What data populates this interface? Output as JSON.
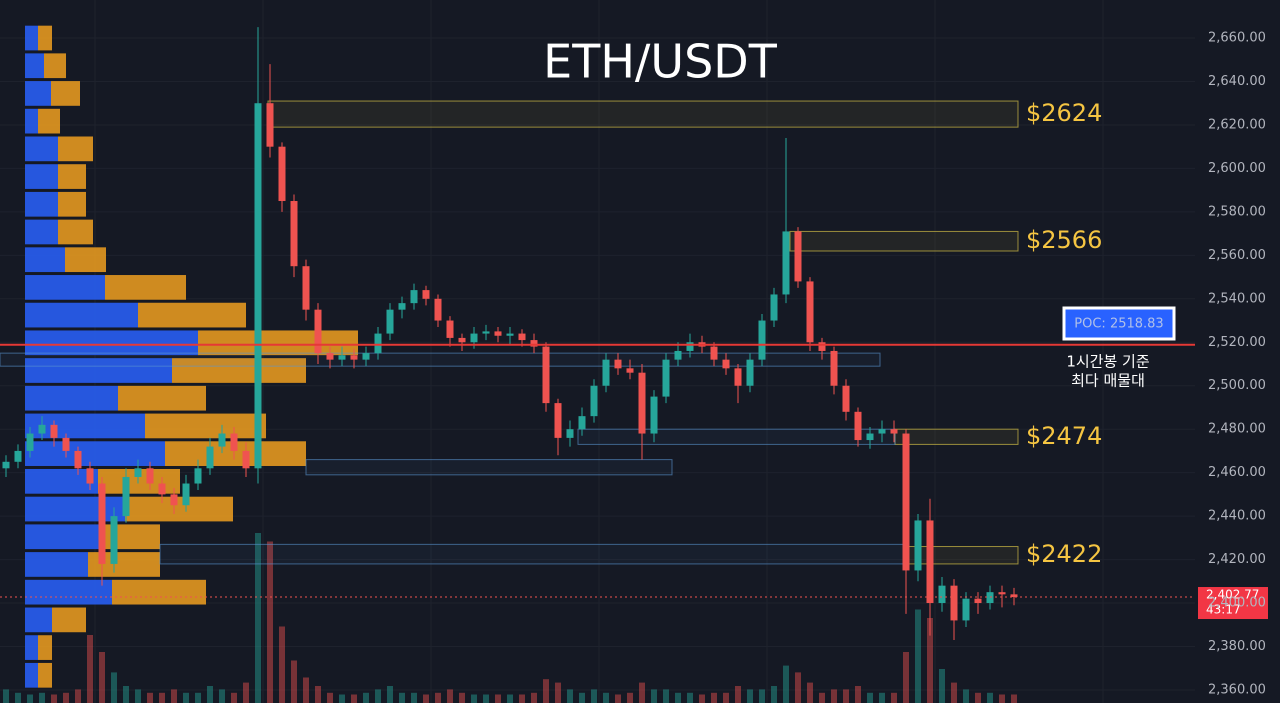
{
  "chart_data": {
    "type": "candlestick",
    "title": "ETH/USDT",
    "ylim": [
      2354,
      2677.5
    ],
    "yticks": [
      {
        "value": 2360,
        "label": "2,360.00"
      },
      {
        "value": 2380,
        "label": "2,380.00"
      },
      {
        "value": 2400,
        "label": "2,400.00"
      },
      {
        "value": 2420,
        "label": "2,420.00"
      },
      {
        "value": 2440,
        "label": "2,440.00"
      },
      {
        "value": 2460,
        "label": "2,460.00"
      },
      {
        "value": 2480,
        "label": "2,480.00"
      },
      {
        "value": 2500,
        "label": "2,500.00"
      },
      {
        "value": 2520,
        "label": "2,520.00"
      },
      {
        "value": 2540,
        "label": "2,540.00"
      },
      {
        "value": 2560,
        "label": "2,560.00"
      },
      {
        "value": 2580,
        "label": "2,580.00"
      },
      {
        "value": 2600,
        "label": "2,600.00"
      },
      {
        "value": 2620,
        "label": "2,620.00"
      },
      {
        "value": 2640,
        "label": "2,640.00"
      },
      {
        "value": 2660,
        "label": "2,660.00"
      }
    ],
    "grid": true,
    "up_color": "#26a69a",
    "down_color": "#ef5350",
    "open": [
      2462,
      2465,
      2470,
      2478,
      2482,
      2476,
      2470,
      2462,
      2455,
      2418,
      2440,
      2458,
      2462,
      2455,
      2450,
      2445,
      2455,
      2462,
      2472,
      2478,
      2470,
      2462,
      2630,
      2610,
      2585,
      2555,
      2535,
      2515,
      2512,
      2514,
      2512,
      2515,
      2524,
      2535,
      2538,
      2544,
      2540,
      2530,
      2522,
      2520,
      2524,
      2525,
      2523,
      2524,
      2521,
      2518,
      2492,
      2476,
      2480,
      2486,
      2500,
      2512,
      2508,
      2506,
      2478,
      2495,
      2512,
      2516,
      2520,
      2518,
      2512,
      2508,
      2500,
      2512,
      2530,
      2542,
      2571,
      2548,
      2520,
      2516,
      2500,
      2488,
      2475,
      2478,
      2480,
      2478,
      2415,
      2438,
      2400,
      2408,
      2392,
      2402,
      2400,
      2405,
      2404
    ],
    "high": [
      2468,
      2473,
      2481,
      2486,
      2484,
      2478,
      2472,
      2465,
      2458,
      2444,
      2462,
      2466,
      2465,
      2458,
      2453,
      2459,
      2466,
      2476,
      2482,
      2481,
      2474,
      2665,
      2648,
      2612,
      2588,
      2558,
      2538,
      2518,
      2518,
      2517,
      2518,
      2527,
      2538,
      2541,
      2547,
      2546,
      2542,
      2532,
      2524,
      2527,
      2528,
      2527,
      2527,
      2526,
      2524,
      2520,
      2494,
      2484,
      2490,
      2503,
      2515,
      2515,
      2512,
      2510,
      2498,
      2515,
      2520,
      2524,
      2523,
      2520,
      2515,
      2510,
      2515,
      2533,
      2545,
      2614,
      2573,
      2550,
      2522,
      2518,
      2503,
      2490,
      2481,
      2484,
      2484,
      2480,
      2441,
      2448,
      2412,
      2411,
      2405,
      2405,
      2408,
      2408,
      2407
    ],
    "low": [
      2458,
      2462,
      2467,
      2475,
      2472,
      2467,
      2459,
      2452,
      2408,
      2414,
      2437,
      2455,
      2452,
      2446,
      2441,
      2442,
      2452,
      2459,
      2469,
      2466,
      2458,
      2455,
      2605,
      2580,
      2550,
      2530,
      2510,
      2508,
      2509,
      2508,
      2509,
      2512,
      2521,
      2531,
      2535,
      2537,
      2527,
      2518,
      2516,
      2517,
      2521,
      2520,
      2519,
      2518,
      2515,
      2488,
      2468,
      2472,
      2477,
      2483,
      2497,
      2505,
      2503,
      2466,
      2474,
      2492,
      2509,
      2513,
      2515,
      2509,
      2505,
      2492,
      2497,
      2509,
      2527,
      2538,
      2545,
      2516,
      2512,
      2496,
      2484,
      2472,
      2471,
      2474,
      2474,
      2395,
      2410,
      2385,
      2396,
      2383,
      2389,
      2395,
      2397,
      2398,
      2399
    ],
    "close": [
      2465,
      2470,
      2478,
      2482,
      2476,
      2470,
      2462,
      2455,
      2418,
      2440,
      2458,
      2462,
      2455,
      2450,
      2445,
      2455,
      2462,
      2472,
      2478,
      2470,
      2462,
      2630,
      2610,
      2585,
      2555,
      2535,
      2515,
      2512,
      2514,
      2512,
      2515,
      2524,
      2535,
      2538,
      2544,
      2540,
      2530,
      2522,
      2520,
      2524,
      2525,
      2523,
      2524,
      2521,
      2518,
      2492,
      2476,
      2480,
      2486,
      2500,
      2512,
      2508,
      2506,
      2478,
      2495,
      2512,
      2516,
      2520,
      2518,
      2512,
      2508,
      2500,
      2512,
      2530,
      2542,
      2571,
      2548,
      2520,
      2516,
      2500,
      2488,
      2475,
      2478,
      2480,
      2478,
      2415,
      2438,
      2400,
      2408,
      2392,
      2402,
      2400,
      2405,
      2404,
      2402.77
    ],
    "volume": [
      8,
      6,
      5,
      6,
      5,
      6,
      8,
      40,
      30,
      18,
      10,
      8,
      6,
      6,
      8,
      6,
      6,
      10,
      8,
      6,
      12,
      100,
      95,
      45,
      25,
      15,
      10,
      6,
      5,
      5,
      6,
      8,
      10,
      6,
      6,
      5,
      6,
      8,
      6,
      5,
      5,
      5,
      5,
      5,
      6,
      14,
      12,
      8,
      6,
      8,
      6,
      5,
      6,
      12,
      8,
      8,
      6,
      6,
      5,
      6,
      6,
      10,
      8,
      8,
      10,
      22,
      18,
      12,
      6,
      8,
      8,
      10,
      6,
      6,
      6,
      30,
      55,
      50,
      20,
      12,
      8,
      6,
      6,
      5,
      5
    ],
    "profile": {
      "buy_color": "#2962ff",
      "sell_color": "#f0a020",
      "levels": [
        2660,
        2647.25,
        2634.5,
        2621.75,
        2609,
        2596.25,
        2583.5,
        2570.75,
        2558,
        2545.25,
        2532.5,
        2519.75,
        2507,
        2494.25,
        2481.5,
        2468.75,
        2456,
        2443.25,
        2430.5,
        2417.75,
        2405,
        2392.25,
        2379.5,
        2366.75
      ],
      "buy": [
        13,
        19,
        26,
        13,
        33,
        33,
        33,
        33,
        40,
        80,
        113,
        173,
        147,
        93,
        120,
        140,
        73,
        100,
        77,
        63,
        87,
        27,
        13,
        13
      ],
      "sell": [
        14,
        22,
        29,
        22,
        35,
        28,
        28,
        35,
        41,
        81,
        108,
        160,
        134,
        88,
        121,
        141,
        82,
        108,
        58,
        72,
        94,
        34,
        14,
        14
      ]
    },
    "zones": [
      {
        "label": "$2624",
        "low": 2619,
        "high": 2631
      },
      {
        "label": "$2566",
        "low": 2562,
        "high": 2571
      },
      {
        "label": "$2474",
        "low": 2473,
        "high": 2480
      },
      {
        "label": "$2422",
        "low": 2418,
        "high": 2426
      },
      {
        "low": 2509,
        "high": 2515
      },
      {
        "low": 2473,
        "high": 2480
      },
      {
        "low": 2459,
        "high": 2466
      },
      {
        "low": 2418,
        "high": 2427
      }
    ],
    "poc": {
      "label": "POC: 2518.83",
      "value": 2518.83,
      "note": [
        "1시간봉 기준",
        "최다 매물대"
      ]
    },
    "last_price": {
      "value": 2402.77,
      "label": "2,402.77",
      "countdown": "43:17"
    }
  }
}
